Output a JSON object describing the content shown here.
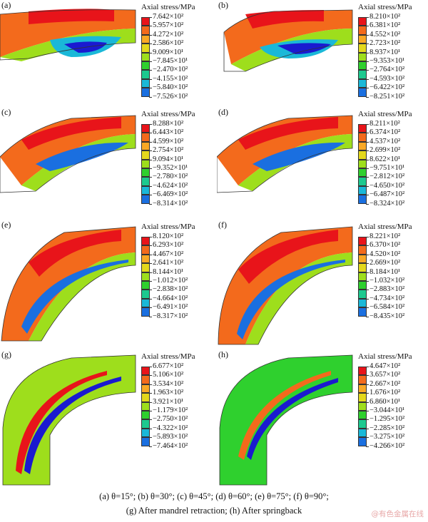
{
  "panels": [
    {
      "label": "(a)",
      "title": "Axial stress/MPa",
      "values": [
        "7.642×10²",
        "5.957×10²",
        "4.272×10²",
        "2.586×10²",
        "9.009×10¹",
        "−7.845×10¹",
        "−2.470×10²",
        "−4.155×10²",
        "−5.840×10²",
        "−7.526×10²"
      ]
    },
    {
      "label": "(b)",
      "title": "Axial stress/MPa",
      "values": [
        "8.210×10²",
        "6.381×10²",
        "4.552×10²",
        "2.723×10²",
        "8.937×10¹",
        "−9.353×10¹",
        "−2.764×10²",
        "−4.593×10²",
        "−6.422×10²",
        "−8.251×10²"
      ]
    },
    {
      "label": "(c)",
      "title": "Axial stress/MPa",
      "values": [
        "8.288×10²",
        "6.443×10²",
        "4.599×10²",
        "2.754×10²",
        "9.094×10¹",
        "−9.352×10¹",
        "−2.780×10²",
        "−4.624×10²",
        "−6.469×10²",
        "−8.314×10²"
      ]
    },
    {
      "label": "(d)",
      "title": "Axial stress/MPa",
      "values": [
        "8.211×10²",
        "6.374×10²",
        "4.537×10²",
        "2.699×10²",
        "8.622×10¹",
        "−9.751×10¹",
        "−2.812×10²",
        "−4.650×10²",
        "−6.487×10²",
        "−8.324×10²"
      ]
    },
    {
      "label": "(e)",
      "title": "Axial stress/MPa",
      "values": [
        "8.120×10²",
        "6.293×10²",
        "4.467×10²",
        "2.641×10²",
        "8.144×10¹",
        "−1.012×10²",
        "−2.838×10²",
        "−4.664×10²",
        "−6.491×10²",
        "−8.317×10²"
      ]
    },
    {
      "label": "(f)",
      "title": "Axial stress/MPa",
      "values": [
        "8.221×10²",
        "6.370×10²",
        "4.520×10²",
        "2.669×10²",
        "8.184×10¹",
        "−1.032×10²",
        "−2.883×10²",
        "−4.734×10²",
        "−6.584×10²",
        "−8.435×10²"
      ]
    },
    {
      "label": "(g)",
      "title": "Axial stress/MPa",
      "values": [
        "6.677×10²",
        "5.106×10²",
        "3.534×10²",
        "1.963×10²",
        "3.921×10¹",
        "−1.179×10²",
        "−2.750×10²",
        "−4.322×10²",
        "−5.893×10²",
        "−7.464×10²"
      ]
    },
    {
      "label": "(h)",
      "title": "Axial stress/MPa",
      "values": [
        "4.647×10²",
        "3.657×10²",
        "2.667×10²",
        "1.676×10²",
        "6.860×10¹",
        "−3.044×10¹",
        "−1.295×10²",
        "−2.285×10²",
        "−3.275×10²",
        "−4.266×10²"
      ]
    }
  ],
  "legend_colors": [
    "#e8141a",
    "#f36a1c",
    "#f9a825",
    "#e4d81c",
    "#9ede1c",
    "#2fd02e",
    "#1dc98f",
    "#1ab8d8",
    "#1a6fe0",
    "#1a1ad0"
  ],
  "caption": {
    "line1": "(a) θ=15°; (b) θ=30°; (c) θ=45°; (d) θ=60°; (e) θ=75°; (f) θ=90°;",
    "line2": "(g) After mandrel retraction; (h) After springback"
  },
  "watermark": "@有色金属在线"
}
